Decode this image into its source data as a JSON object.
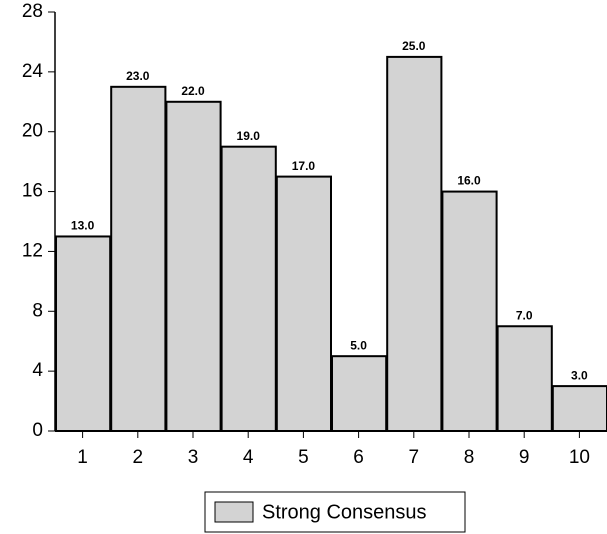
{
  "chart_data": {
    "type": "bar",
    "categories": [
      "1",
      "2",
      "3",
      "4",
      "5",
      "6",
      "7",
      "8",
      "9",
      "10"
    ],
    "series": [
      {
        "name": "Strong Consensus",
        "color": "#d3d3d3",
        "values": [
          13,
          23,
          22,
          19,
          17,
          5,
          25,
          16,
          7,
          3
        ],
        "value_labels": [
          "13.0",
          "23.0",
          "22.0",
          "19.0",
          "17.0",
          "5.0",
          "25.0",
          "16.0",
          "7.0",
          "3.0"
        ]
      }
    ],
    "ylim": [
      0,
      28
    ],
    "yticks": [
      0,
      4,
      8,
      12,
      16,
      20,
      24,
      28
    ],
    "grid": false,
    "legend": "bottom"
  }
}
